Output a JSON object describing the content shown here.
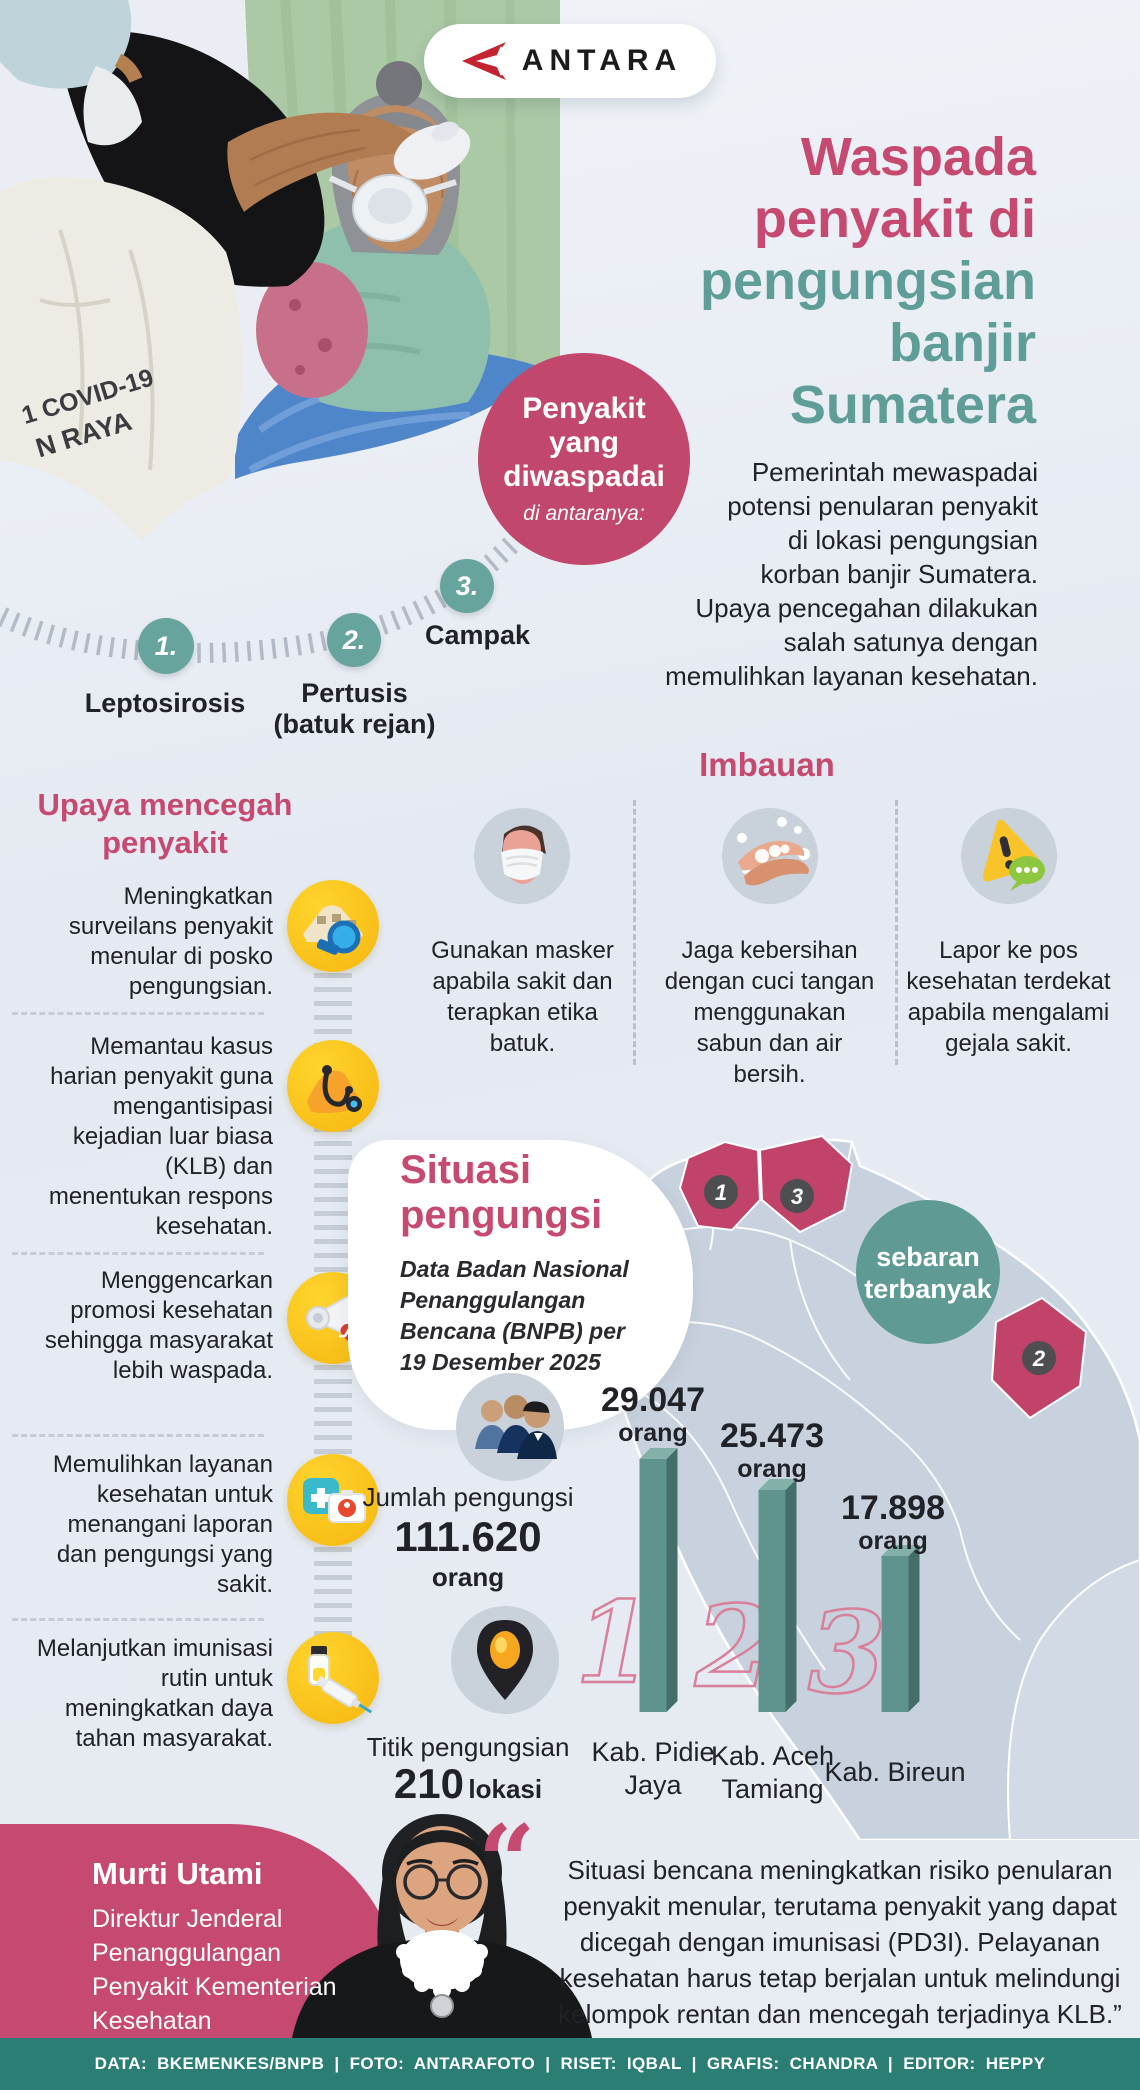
{
  "brand": {
    "name": "ANTARA"
  },
  "hero": {
    "shirt_text_1": "1 COVID-19",
    "shirt_text_2": "N RAYA"
  },
  "header": {
    "title_pink_lines": [
      "Waspada",
      "penyakit di"
    ],
    "title_teal_lines": [
      "pengungsian",
      "banjir",
      "Sumatera"
    ],
    "intro_lines": [
      "Pemerintah mewaspadai",
      "potensi penularan penyakit",
      "di lokasi pengungsian",
      "korban banjir Sumatera.",
      "Upaya pencegahan dilakukan",
      "salah satunya dengan",
      "memulihkan layanan kesehatan."
    ]
  },
  "badge": {
    "line1": "Penyakit",
    "line2": "yang",
    "line3": "diwaspadai",
    "note": "di antaranya:"
  },
  "diseases": [
    {
      "num": "1.",
      "name": "Leptosirosis"
    },
    {
      "num": "2.",
      "name": "Pertusis (batuk rejan)"
    },
    {
      "num": "3.",
      "name": "Campak"
    }
  ],
  "prevention": {
    "heading": "Upaya mencegah penyakit",
    "items": [
      {
        "icon": "tent-surveillance-icon",
        "text": "Meningkatkan surveilans penyakit menular di posko pengungsian."
      },
      {
        "icon": "stethoscope-icon",
        "text": "Memantau kasus harian penyakit guna mengantisipasi kejadian luar biasa (KLB) dan menentukan respons kesehatan."
      },
      {
        "icon": "megaphone-icon",
        "text": "Menggencarkan promosi kesehatan sehingga masyarakat lebih waspada."
      },
      {
        "icon": "first-aid-icon",
        "text": "Memulihkan layanan kesehatan untuk menangani laporan dan pengungsi yang sakit."
      },
      {
        "icon": "vaccine-icon",
        "text": "Melanjutkan imunisasi rutin untuk meningkatkan daya tahan masyarakat."
      }
    ]
  },
  "advisory": {
    "heading": "Imbauan",
    "items": [
      {
        "icon": "mask-face-icon",
        "text": "Gunakan masker apabila sakit dan terapkan etika batuk."
      },
      {
        "icon": "hand-washing-icon",
        "text": "Jaga kebersihan dengan cuci tangan menggunakan sabun dan air bersih."
      },
      {
        "icon": "report-warning-icon",
        "text": "Lapor ke pos kesehatan terdekat apabila mengalami gejala sakit."
      }
    ]
  },
  "situation": {
    "heading_line1": "Situasi",
    "heading_line2": "pengungsi",
    "source_lines": [
      "Data Badan Nasional",
      "Penanggulangan",
      "Bencana (BNPB) per",
      "19 Desember 2025"
    ],
    "map_label_1": "sebaran",
    "map_label_2": "terbanyak",
    "map_markers": [
      "1",
      "3",
      "2"
    ],
    "refugees_label": "Jumlah pengungsi",
    "refugees_value": "111.620",
    "refugees_unit": "orang",
    "points_label": "Titik pengungsian",
    "points_value": "210",
    "points_unit": "lokasi"
  },
  "chart_data": {
    "type": "bar",
    "title": "Sebaran pengungsi terbanyak per kabupaten",
    "categories": [
      "Kab. Pidie Jaya",
      "Kab. Aceh Tamiang",
      "Kab. Bireun"
    ],
    "values": [
      29047,
      25473,
      17898
    ],
    "value_labels": [
      "29.047",
      "25.473",
      "17.898"
    ],
    "unit": "orang",
    "ranks": [
      "1",
      "2",
      "3"
    ],
    "ylim": [
      0,
      29047
    ],
    "bar_color": "#5f948e"
  },
  "quote": {
    "open_mark": "“",
    "name": "Murti Utami",
    "title": "Direktur Jenderal Penanggulangan Penyakit Kementerian Kesehatan",
    "text": "Situasi bencana meningkatkan risiko penularan penyakit menular, terutama penyakit yang dapat dicegah dengan imunisasi (PD3I). Pelayanan kesehatan harus tetap berjalan untuk melindungi kelompok rentan dan mencegah terjadinya KLB.”"
  },
  "footer": {
    "credits": "DATA: BKEMENKES/BNPB | FOTO: ANTARAFOTO | RISET: IQBAL | GRAFIS: CHANDRA | EDITOR: HEPPY"
  },
  "colors": {
    "accent_pink": "#c6496f",
    "accent_teal": "#5f9e98",
    "footer_teal": "#2a7e73",
    "bar_teal": "#5f948e",
    "map_highlight": "#c2436a",
    "icon_yellow": "#f5b70f"
  }
}
